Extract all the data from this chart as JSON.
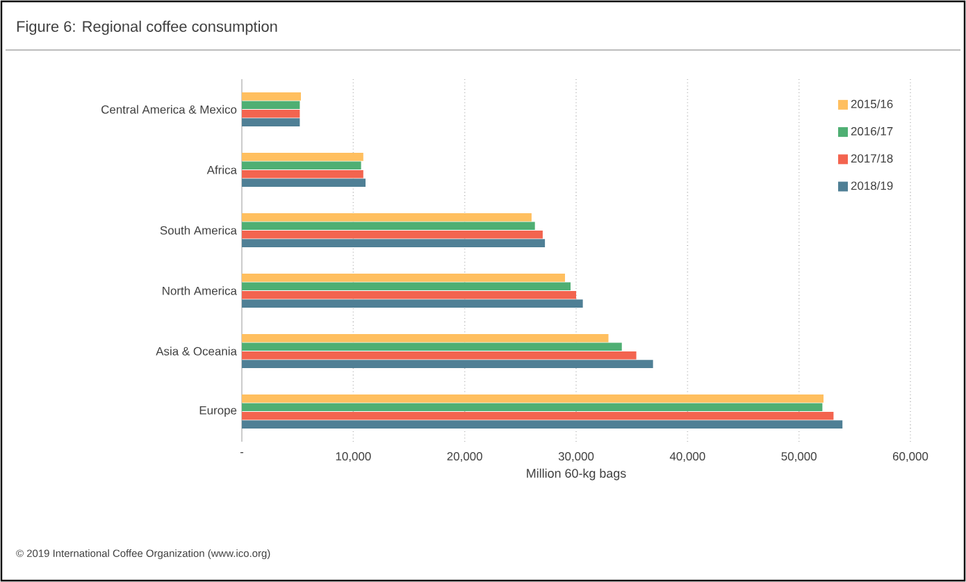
{
  "chart_data": {
    "type": "bar",
    "orientation": "horizontal",
    "title": "Figure 6: Regional coffee consumption",
    "xlabel": "Million 60-kg bags",
    "categories": [
      "Central America & Mexico",
      "Africa",
      "South America",
      "North America",
      "Asia & Oceania",
      "Europe"
    ],
    "series": [
      {
        "name": "2015/16",
        "color": "#ffbf5f",
        "values": [
          5300,
          10900,
          26000,
          29000,
          32900,
          52200
        ]
      },
      {
        "name": "2016/17",
        "color": "#4faf73",
        "values": [
          5200,
          10700,
          26300,
          29500,
          34100,
          52100
        ]
      },
      {
        "name": "2017/18",
        "color": "#f3644f",
        "values": [
          5200,
          10900,
          27000,
          30000,
          35400,
          53100
        ]
      },
      {
        "name": "2018/19",
        "color": "#4f7f95",
        "values": [
          5200,
          11100,
          27200,
          30600,
          36900,
          53900
        ]
      }
    ],
    "xlim": [
      0,
      60000
    ],
    "xticks": [
      {
        "value": 0,
        "label": "-"
      },
      {
        "value": 10000,
        "label": "10,000"
      },
      {
        "value": 20000,
        "label": "20,000"
      },
      {
        "value": 30000,
        "label": "30,000"
      },
      {
        "value": 40000,
        "label": "40,000"
      },
      {
        "value": 50000,
        "label": "50,000"
      },
      {
        "value": 60000,
        "label": "60,000"
      }
    ],
    "grid": "x",
    "legend": "top right",
    "annotations": [
      "© 2019 International Coffee Organization (www.ico.org)"
    ]
  }
}
